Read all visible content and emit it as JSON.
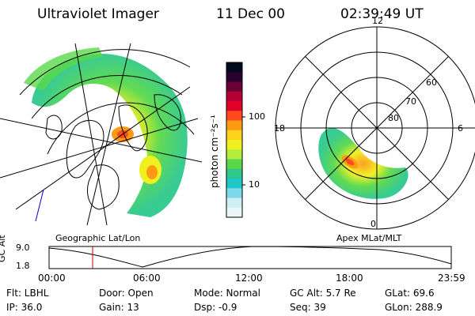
{
  "header": {
    "instrument": "Ultraviolet Imager",
    "date": "11 Dec 00",
    "time": "02:39:49 UT"
  },
  "colorbar": {
    "label": "photon cm⁻²s⁻¹",
    "ticks": [
      "100",
      "10"
    ],
    "colors": [
      "#000a1e",
      "#2a002e",
      "#6a0036",
      "#b40034",
      "#e0002a",
      "#ff4a1e",
      "#ff9a14",
      "#ffd21e",
      "#f0f01e",
      "#b4ee3c",
      "#5ad84a",
      "#2ec88c",
      "#1ec8c8",
      "#7ed8ee",
      "#cfeef6",
      "#eaf6fa"
    ]
  },
  "polar": {
    "mlt_labels": [
      "12",
      "18",
      "6",
      "0"
    ],
    "lat_labels": [
      "60",
      "70",
      "80"
    ]
  },
  "map_label_left": "Geographic Lat/Lon",
  "map_label_right": "Apex MLat/MLT",
  "altitude": {
    "axis_title": "GC Alt",
    "y_ticks": [
      "9.0",
      "1.8"
    ],
    "x_ticks": [
      "00:00",
      "06:00",
      "12:00",
      "18:00",
      "23:59"
    ],
    "current_time_marker_color": "#c00000"
  },
  "info": {
    "row1": [
      "Flt: LBHL",
      "Door: Open",
      "Mode: Normal",
      "GC Alt: 5.7 Re",
      "GLat: 69.6"
    ],
    "row2": [
      "IP: 36.0",
      "Gain: 13",
      "Dsp: -0.9",
      "Seq: 39",
      "GLon: 288.9"
    ]
  }
}
